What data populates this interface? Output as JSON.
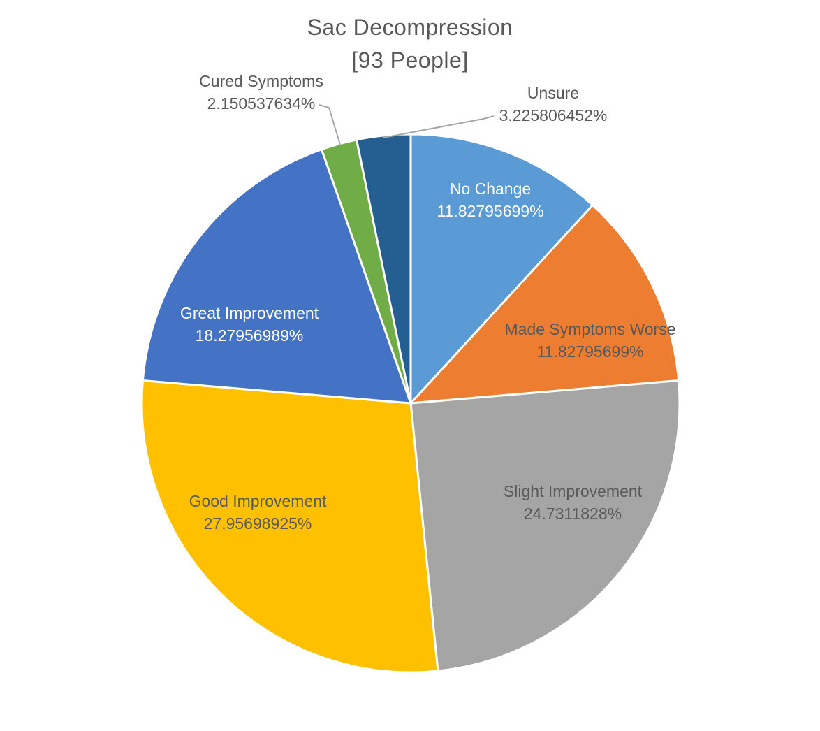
{
  "title": {
    "line1": "Sac Decompression",
    "line2": "[93 People]"
  },
  "chart_data": {
    "type": "pie",
    "title": "Sac Decompression",
    "subtitle": "[93 People]",
    "sample_size": 93,
    "start_angle_deg": 0,
    "direction": "clockwise",
    "legend": "none",
    "background_color": "#FFFFFF",
    "title_color": "#595959",
    "label_color_dark": "#595959",
    "label_color_light": "#FFFFFF",
    "leader_line_color": "#A6A6A6",
    "slice_border_color": "#FFFFFF",
    "slices": [
      {
        "label": "No Change",
        "value": 11.82795699,
        "display": "11.82795699%",
        "color": "#5B9BD5",
        "text_color": "#FFFFFF",
        "label_placement": "inside"
      },
      {
        "label": "Made Symptoms Worse",
        "value": 11.82795699,
        "display": "11.82795699%",
        "color": "#ED7D31",
        "text_color": "#595959",
        "label_placement": "inside"
      },
      {
        "label": "Slight Improvement",
        "value": 24.7311828,
        "display": "24.7311828%",
        "color": "#A5A5A5",
        "text_color": "#595959",
        "label_placement": "inside"
      },
      {
        "label": "Good Improvement",
        "value": 27.95698925,
        "display": "27.95698925%",
        "color": "#FFC000",
        "text_color": "#595959",
        "label_placement": "inside"
      },
      {
        "label": "Great Improvement",
        "value": 18.27956989,
        "display": "18.27956989%",
        "color": "#4472C4",
        "text_color": "#FFFFFF",
        "label_placement": "inside"
      },
      {
        "label": "Cured Symptoms",
        "value": 2.150537634,
        "display": "2.150537634%",
        "color": "#70AD47",
        "text_color": "#595959",
        "label_placement": "outside"
      },
      {
        "label": "Unsure",
        "value": 3.225806452,
        "display": "3.225806452%",
        "color": "#255E91",
        "text_color": "#595959",
        "label_placement": "outside"
      }
    ]
  }
}
